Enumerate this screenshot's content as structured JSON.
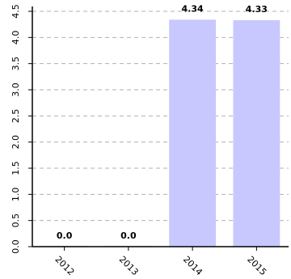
{
  "chart_data": {
    "type": "bar",
    "categories": [
      "2012",
      "2013",
      "2014",
      "2015"
    ],
    "values": [
      0.0,
      0.0,
      4.34,
      4.33
    ],
    "data_labels": [
      "0.0",
      "0.0",
      "4.34",
      "4.33"
    ],
    "y_ticks": [
      "0.0",
      "0.5",
      "1.0",
      "1.5",
      "2.0",
      "2.5",
      "3.0",
      "3.5",
      "4.0",
      "4.5"
    ],
    "ylim": [
      0,
      4.5
    ],
    "grid": true,
    "bar_color": "#c8c8ff",
    "title": "",
    "xlabel": "",
    "ylabel": ""
  }
}
